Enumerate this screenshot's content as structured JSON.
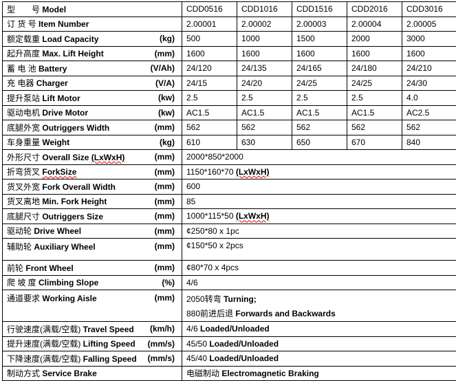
{
  "models": [
    "CDD0516",
    "CDD1016",
    "CDD1516",
    "CDD2016",
    "CDD3016"
  ],
  "rows": [
    {
      "cn": "型　　号",
      "en": "Model",
      "unit": ""
    },
    {
      "cn": "订 货 号",
      "en": "Item Number",
      "unit": "",
      "vals": [
        "2.00001",
        "2.00002",
        "2.00003",
        "2.00004",
        "2.00005"
      ]
    },
    {
      "cn": "额定载重",
      "en": "Load Capacity",
      "unit": "(kg)",
      "vals": [
        "500",
        "1000",
        "1500",
        "2000",
        "3000"
      ]
    },
    {
      "cn": "起升高度",
      "en": "Max. Lift Height",
      "unit": "(mm)",
      "vals": [
        "1600",
        "1600",
        "1600",
        "1600",
        "1600"
      ]
    },
    {
      "cn": "蓄 电 池 ",
      "en": "Battery",
      "unit": "(V/Ah)",
      "vals": [
        "24/120",
        "24/135",
        "24/165",
        "24/180",
        "24/210"
      ]
    },
    {
      "cn": "充 电器",
      "en": "Charger",
      "unit": "(V/A)",
      "vals": [
        "24/15",
        "24/20",
        "24/25",
        "24/25",
        "24/30"
      ]
    },
    {
      "cn": "提升泵站 ",
      "en": "Lift Motor",
      "unit": "(kw)",
      "vals": [
        "2.5",
        "2.5",
        "2.5",
        "2.5",
        "4.0"
      ]
    },
    {
      "cn": "驱动电机",
      "en": "Drive Motor",
      "unit": "(kw)",
      "vals": [
        "AC1.5",
        "AC1.5",
        "AC1.5",
        "AC1.5",
        "AC2.5"
      ]
    },
    {
      "cn": "底腿外宽",
      "en": "Outriggers Width",
      "unit": "(mm)",
      "vals": [
        "562",
        "562",
        "562",
        "562",
        "562"
      ]
    },
    {
      "cn": "车身重量",
      "en": "Weight",
      "unit": "(kg)",
      "vals": [
        "610",
        "630",
        "650",
        "670",
        "840"
      ]
    }
  ],
  "merged": [
    {
      "cn": "外形尺寸",
      "en": "Overall Size (LxWxH)",
      "unit": "(mm)",
      "value": "2000*850*2000"
    },
    {
      "cn": "折弯货叉",
      "en": "ForkSize",
      "unit": "(mm)",
      "value": "1150*160*70",
      "value_b": "(LxWxH)"
    },
    {
      "cn": "货叉外宽",
      "en": "Fork Overall Width",
      "unit": "(mm)",
      "value": "600"
    },
    {
      "cn": "货叉离地",
      "en": "Min. Fork Height",
      "unit": "(mm)",
      "value": "85"
    },
    {
      "cn": "底腿尺寸 ",
      "en": "Outriggers  Size",
      "unit": "(mm)",
      "value": "1000*115*50",
      "value_b": "(LxWxH)"
    },
    {
      "cn": "驱动轮 ",
      "en": "Drive Wheel",
      "unit": "(mm)",
      "value": "¢250*80 x 1pc"
    },
    {
      "cn": "辅助轮",
      "en": "Auxiliary Wheel",
      "unit": "(mm)",
      "value": "¢150*50 x 2pcs"
    },
    {
      "cn": "前轮",
      "en": "Front Wheel",
      "unit": "(mm)",
      "value": "¢80*70 x 4pcs"
    },
    {
      "cn": "爬 坡 度 ",
      "en": "Climbing Slope",
      "unit": "(%)",
      "value": "4/6"
    },
    {
      "cn": "通道要求 ",
      "en": "Working Aisle",
      "unit": "(mm)",
      "value": "2050转弯",
      "value_b": "Turning;",
      "value2": "880前进后退",
      "value2_b": "Forwards and Backwards"
    },
    {
      "cn": "行驶速度(满载/空载)",
      "en": "Travel Speed",
      "unit": "(km/h)",
      "value": "4/6",
      "value_b": "Loaded/Unloaded"
    },
    {
      "cn": "提升速度(满载/空载) ",
      "en": "Lifting Speed",
      "unit": "(mm/s)",
      "value": "45/50",
      "value_b": "Loaded/Unloaded"
    },
    {
      "cn": "下降速度(满载/空载)",
      "en": "Falling Speed",
      "unit": "(mm/s)",
      "value": "45/40",
      "value_b": "Loaded/Unloaded"
    },
    {
      "cn": "制动方式",
      "en": "Service Brake",
      "unit": "",
      "value": "电磁制动",
      "value_b": "Electromagnetic Braking"
    }
  ]
}
